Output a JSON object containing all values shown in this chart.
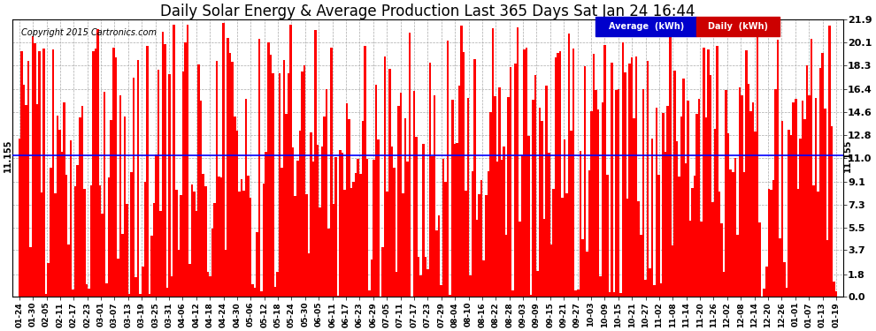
{
  "title": "Daily Solar Energy & Average Production Last 365 Days Sat Jan 24 16:44",
  "copyright": "Copyright 2015 Cartronics.com",
  "average_value": 11.155,
  "average_label": "11.155",
  "y_ticks": [
    0.0,
    1.8,
    3.7,
    5.5,
    7.3,
    9.1,
    11.0,
    12.8,
    14.6,
    16.4,
    18.3,
    20.1,
    21.9
  ],
  "ylim": [
    0.0,
    21.9
  ],
  "bar_color": "#ff0000",
  "average_line_color": "#0000ff",
  "background_color": "#ffffff",
  "grid_color": "#aaaaaa",
  "legend_avg_color": "#0000cc",
  "legend_daily_color": "#cc0000",
  "title_fontsize": 12,
  "x_labels": [
    "01-24",
    "01-30",
    "02-05",
    "02-11",
    "02-17",
    "02-23",
    "03-01",
    "03-07",
    "03-13",
    "03-19",
    "03-25",
    "03-31",
    "04-06",
    "04-12",
    "04-18",
    "04-24",
    "04-30",
    "05-06",
    "05-12",
    "05-18",
    "05-24",
    "05-30",
    "06-05",
    "06-11",
    "06-17",
    "06-23",
    "06-29",
    "07-05",
    "07-11",
    "07-17",
    "07-23",
    "07-29",
    "08-04",
    "08-10",
    "08-16",
    "08-22",
    "08-28",
    "09-03",
    "09-09",
    "09-15",
    "09-21",
    "09-27",
    "10-03",
    "10-09",
    "10-15",
    "10-21",
    "10-27",
    "11-02",
    "11-08",
    "11-14",
    "11-20",
    "11-26",
    "12-02",
    "12-08",
    "12-14",
    "12-20",
    "12-26",
    "01-01",
    "01-07",
    "01-13",
    "01-19"
  ],
  "num_bars": 365,
  "seed": 42
}
